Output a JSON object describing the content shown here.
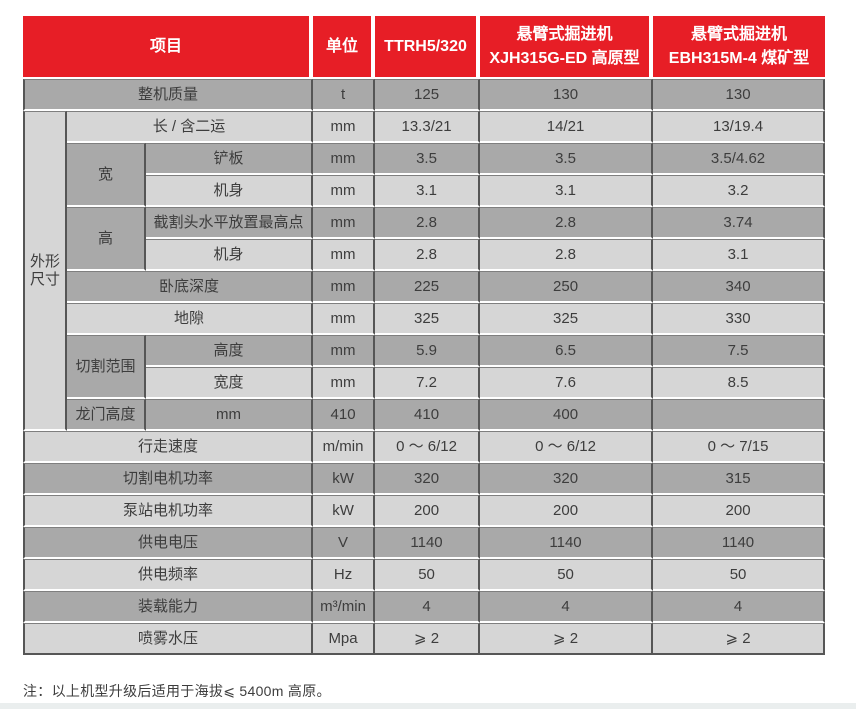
{
  "colors": {
    "header_red": "#e71e26",
    "row_dark": "#a9a9a9",
    "row_light": "#d6d6d6",
    "group_cell_light": "#d3d3d3",
    "border_dark": "#565656",
    "border_mid": "#7f7f7f",
    "header_text": "#ffffff",
    "body_text": "#3d3d3d",
    "bottom_band": "#eaeeee"
  },
  "table": {
    "header": [
      {
        "t": "项目",
        "cs": 3
      },
      {
        "t": "单位"
      },
      {
        "t": "TTRH5/320"
      },
      {
        "t": "悬臂式掘进机\nXJH315G-ED 高原型"
      },
      {
        "t": "悬臂式掘进机\nEBH315M-4 煤矿型"
      }
    ],
    "rows": [
      {
        "shade": "dark",
        "cells": [
          {
            "t": "整机质量",
            "cs": 3,
            "lead": 1,
            "n": "row-label"
          },
          {
            "t": "t",
            "n": "unit-cell"
          },
          {
            "t": "125"
          },
          {
            "t": "130"
          },
          {
            "t": "130"
          }
        ]
      },
      {
        "shade": "light",
        "cells": [
          {
            "t": "外形\n尺寸",
            "rs": 10,
            "lead": 1,
            "cls": "group-light",
            "n": "group-label"
          },
          {
            "t": "长 / 含二运",
            "cs": 2,
            "n": "row-label"
          },
          {
            "t": "mm",
            "n": "unit-cell"
          },
          {
            "t": "13.3/21"
          },
          {
            "t": "14/21"
          },
          {
            "t": "13/19.4"
          }
        ]
      },
      {
        "shade": "dark",
        "cells": [
          {
            "t": "宽",
            "rs": 2,
            "cls": "group-dark",
            "n": "group-label"
          },
          {
            "t": "铲板",
            "n": "row-label"
          },
          {
            "t": "mm",
            "n": "unit-cell"
          },
          {
            "t": "3.5"
          },
          {
            "t": "3.5"
          },
          {
            "t": "3.5/4.62"
          }
        ]
      },
      {
        "shade": "light",
        "cells": [
          {
            "t": "机身",
            "n": "row-label"
          },
          {
            "t": "mm",
            "n": "unit-cell"
          },
          {
            "t": "3.1"
          },
          {
            "t": "3.1"
          },
          {
            "t": "3.2"
          }
        ]
      },
      {
        "shade": "dark",
        "cells": [
          {
            "t": "高",
            "rs": 2,
            "cls": "group-dark",
            "n": "group-label"
          },
          {
            "t": "截割头水平放置最高点",
            "n": "row-label"
          },
          {
            "t": "mm",
            "n": "unit-cell"
          },
          {
            "t": "2.8"
          },
          {
            "t": "2.8"
          },
          {
            "t": "3.74"
          }
        ]
      },
      {
        "shade": "light",
        "cells": [
          {
            "t": "机身",
            "n": "row-label"
          },
          {
            "t": "mm",
            "n": "unit-cell"
          },
          {
            "t": "2.8"
          },
          {
            "t": "2.8"
          },
          {
            "t": "3.1"
          }
        ]
      },
      {
        "shade": "dark",
        "cells": [
          {
            "t": "卧底深度",
            "cs": 2,
            "n": "row-label"
          },
          {
            "t": "mm",
            "n": "unit-cell"
          },
          {
            "t": "225"
          },
          {
            "t": "250"
          },
          {
            "t": "340"
          }
        ]
      },
      {
        "shade": "light",
        "cells": [
          {
            "t": "地隙",
            "cs": 2,
            "n": "row-label"
          },
          {
            "t": "mm",
            "n": "unit-cell"
          },
          {
            "t": "325"
          },
          {
            "t": "325"
          },
          {
            "t": "330"
          }
        ]
      },
      {
        "shade": "dark",
        "cells": [
          {
            "t": "切割范围",
            "rs": 2,
            "cls": "group-dark",
            "n": "group-label"
          },
          {
            "t": "高度",
            "n": "row-label"
          },
          {
            "t": "mm",
            "n": "unit-cell"
          },
          {
            "t": "5.9"
          },
          {
            "t": "6.5"
          },
          {
            "t": "7.5"
          }
        ]
      },
      {
        "shade": "light",
        "cells": [
          {
            "t": "宽度",
            "n": "row-label"
          },
          {
            "t": "mm",
            "n": "unit-cell"
          },
          {
            "t": "7.2"
          },
          {
            "t": "7.6"
          },
          {
            "t": "8.5"
          }
        ]
      },
      {
        "shade": "dark",
        "cells": [
          {
            "t": "龙门高度",
            "n": "row-label"
          },
          {
            "t": "mm",
            "n": "unit-cell"
          },
          {
            "t": "410"
          },
          {
            "t": "410"
          },
          {
            "t": "400"
          },
          {
            "t": ""
          }
        ]
      },
      {
        "shade": "light",
        "cells": [
          {
            "t": "行走速度",
            "cs": 3,
            "lead": 1,
            "n": "row-label"
          },
          {
            "t": "m/min",
            "n": "unit-cell"
          },
          {
            "t": "0 ～ 6/12"
          },
          {
            "t": "0 ～ 6/12"
          },
          {
            "t": "0 ～ 7/15"
          }
        ]
      },
      {
        "shade": "dark",
        "cells": [
          {
            "t": "切割电机功率",
            "cs": 3,
            "lead": 1,
            "n": "row-label"
          },
          {
            "t": "kW",
            "n": "unit-cell"
          },
          {
            "t": "320"
          },
          {
            "t": "320"
          },
          {
            "t": "315"
          }
        ]
      },
      {
        "shade": "light",
        "cells": [
          {
            "t": "泵站电机功率",
            "cs": 3,
            "lead": 1,
            "n": "row-label"
          },
          {
            "t": "kW",
            "n": "unit-cell"
          },
          {
            "t": "200"
          },
          {
            "t": "200"
          },
          {
            "t": "200"
          }
        ]
      },
      {
        "shade": "dark",
        "cells": [
          {
            "t": "供电电压",
            "cs": 3,
            "lead": 1,
            "n": "row-label"
          },
          {
            "t": "V",
            "n": "unit-cell"
          },
          {
            "t": "1140"
          },
          {
            "t": "1140"
          },
          {
            "t": "1140"
          }
        ]
      },
      {
        "shade": "light",
        "cells": [
          {
            "t": "供电频率",
            "cs": 3,
            "lead": 1,
            "n": "row-label"
          },
          {
            "t": "Hz",
            "n": "unit-cell"
          },
          {
            "t": "50"
          },
          {
            "t": "50"
          },
          {
            "t": "50"
          }
        ]
      },
      {
        "shade": "dark",
        "cells": [
          {
            "t": "装载能力",
            "cs": 3,
            "lead": 1,
            "n": "row-label"
          },
          {
            "t": "m³/min",
            "n": "unit-cell"
          },
          {
            "t": "4"
          },
          {
            "t": "4"
          },
          {
            "t": "4"
          }
        ]
      },
      {
        "shade": "light",
        "cells": [
          {
            "t": "喷雾水压",
            "cs": 3,
            "lead": 1,
            "n": "row-label"
          },
          {
            "t": "Mpa",
            "n": "unit-cell"
          },
          {
            "t": "⩾ 2"
          },
          {
            "t": "⩾ 2"
          },
          {
            "t": "⩾ 2"
          }
        ]
      }
    ]
  },
  "note": {
    "text": "注：以上机型升级后适用于海拔⩽ 5400m 高原。"
  }
}
